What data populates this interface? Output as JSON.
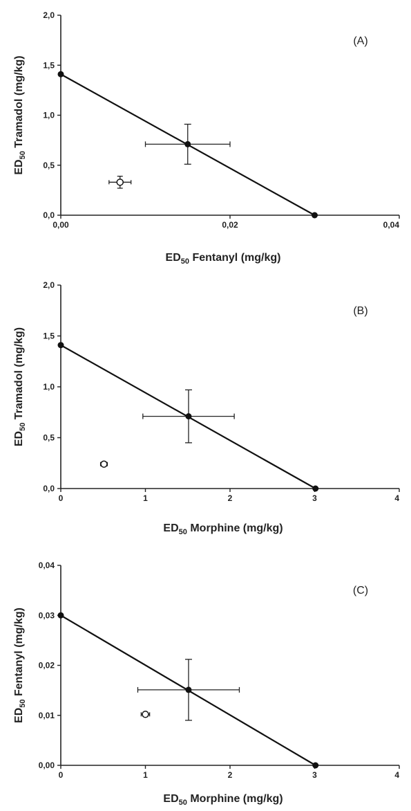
{
  "chart_data": [
    {
      "type": "scatter",
      "panel_label": "(A)",
      "xlabel": {
        "prefix": "ED",
        "sub": "50",
        "text": "Fentanyl (mg/kg)"
      },
      "ylabel": {
        "prefix": "ED",
        "sub": "50",
        "text": "Tramadol (mg/kg)"
      },
      "xlim": [
        0,
        0.04
      ],
      "ylim": [
        0,
        2.0
      ],
      "xticks": [
        {
          "v": 0,
          "label": "0,00"
        },
        {
          "v": 0.02,
          "label": "0,02"
        },
        {
          "v": 0.04,
          "label": "0,04"
        }
      ],
      "yticks": [
        {
          "v": 0,
          "label": "0,0"
        },
        {
          "v": 0.5,
          "label": "0,5"
        },
        {
          "v": 1.0,
          "label": "1,0"
        },
        {
          "v": 1.5,
          "label": "1,5"
        },
        {
          "v": 2.0,
          "label": "2,0"
        }
      ],
      "isobole": [
        [
          0,
          1.41
        ],
        [
          0.03,
          0
        ]
      ],
      "theoretical": {
        "x": 0.015,
        "y": 0.71,
        "xerr": 0.005,
        "yerr": 0.2
      },
      "experimental": {
        "x": 0.007,
        "y": 0.33,
        "xerr": 0.0013,
        "yerr": 0.06
      }
    },
    {
      "type": "scatter",
      "panel_label": "(B)",
      "xlabel": {
        "prefix": "ED",
        "sub": "50",
        "text": "Morphine (mg/kg)"
      },
      "ylabel": {
        "prefix": "ED",
        "sub": "50",
        "text": "Tramadol (mg/kg)"
      },
      "xlim": [
        0,
        4
      ],
      "ylim": [
        0,
        2.0
      ],
      "xticks": [
        {
          "v": 0,
          "label": "0"
        },
        {
          "v": 1,
          "label": "1"
        },
        {
          "v": 2,
          "label": "2"
        },
        {
          "v": 3,
          "label": "3"
        },
        {
          "v": 4,
          "label": "4"
        }
      ],
      "yticks": [
        {
          "v": 0,
          "label": "0,0"
        },
        {
          "v": 0.5,
          "label": "0,5"
        },
        {
          "v": 1.0,
          "label": "1,0"
        },
        {
          "v": 1.5,
          "label": "1,5"
        },
        {
          "v": 2.0,
          "label": "2,0"
        }
      ],
      "isobole": [
        [
          0,
          1.41
        ],
        [
          3.01,
          0
        ]
      ],
      "theoretical": {
        "x": 1.51,
        "y": 0.71,
        "xerr": 0.54,
        "yerr": 0.26
      },
      "experimental": {
        "x": 0.51,
        "y": 0.24,
        "xerr": 0.04,
        "yerr": 0.02
      }
    },
    {
      "type": "scatter",
      "panel_label": "(C)",
      "xlabel": {
        "prefix": "ED",
        "sub": "50",
        "text": "Morphine (mg/kg)"
      },
      "ylabel": {
        "prefix": "ED",
        "sub": "50",
        "text": "Fentanyl (mg/kg)"
      },
      "xlim": [
        0,
        4
      ],
      "ylim": [
        0,
        0.04
      ],
      "xticks": [
        {
          "v": 0,
          "label": "0"
        },
        {
          "v": 1,
          "label": "1"
        },
        {
          "v": 2,
          "label": "2"
        },
        {
          "v": 3,
          "label": "3"
        },
        {
          "v": 4,
          "label": "4"
        }
      ],
      "yticks": [
        {
          "v": 0,
          "label": "0,00"
        },
        {
          "v": 0.01,
          "label": "0,01"
        },
        {
          "v": 0.02,
          "label": "0,02"
        },
        {
          "v": 0.03,
          "label": "0,03"
        },
        {
          "v": 0.04,
          "label": "0,04"
        }
      ],
      "isobole": [
        [
          0,
          0.03
        ],
        [
          3.01,
          0
        ]
      ],
      "theoretical": {
        "x": 1.51,
        "y": 0.0151,
        "xerr": 0.6,
        "yerr": 0.0061
      },
      "experimental": {
        "x": 1.0,
        "y": 0.0102,
        "xerr": 0.05,
        "yerr": 0.0004
      }
    }
  ]
}
